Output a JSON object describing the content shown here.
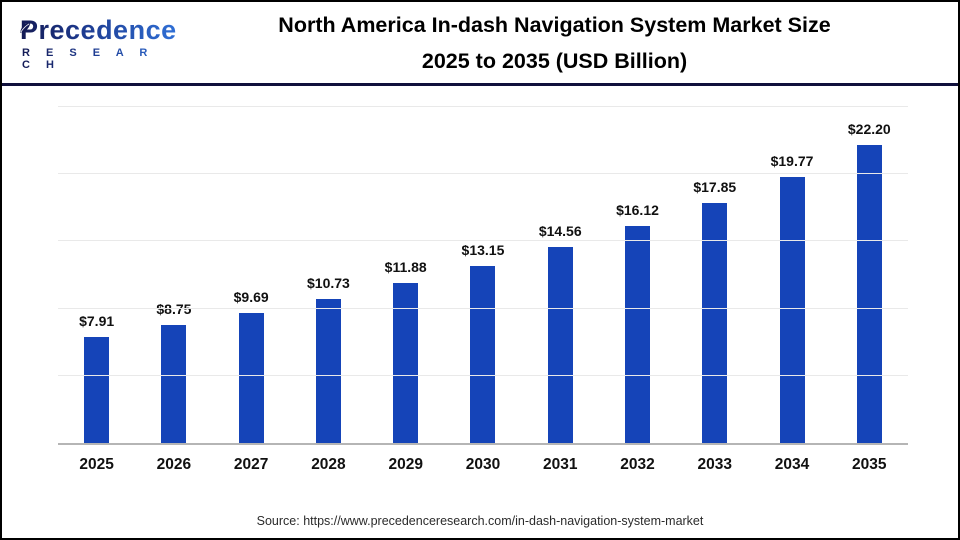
{
  "logo": {
    "name": "Precedence",
    "subname": "R E S E A R C H"
  },
  "title": {
    "line1": "North America In-dash Navigation System Market Size",
    "line2": "2025 to 2035 (USD Billion)"
  },
  "footer": {
    "source": "Source: https://www.precedenceresearch.com/in-dash-navigation-system-market"
  },
  "colors": {
    "bar": "#1544b8",
    "header_divider": "#10103c",
    "gridline": "#e9e9e9",
    "axis": "#b5b5b5"
  },
  "chart_data": {
    "type": "bar",
    "title": "North America In-dash Navigation System Market Size 2025 to 2035 (USD Billion)",
    "categories": [
      "2025",
      "2026",
      "2027",
      "2028",
      "2029",
      "2030",
      "2031",
      "2032",
      "2033",
      "2034",
      "2035"
    ],
    "values": [
      7.91,
      8.75,
      9.69,
      10.73,
      11.88,
      13.15,
      14.56,
      16.12,
      17.85,
      19.77,
      22.2
    ],
    "value_labels": [
      "$7.91",
      "$8.75",
      "$9.69",
      "$10.73",
      "$11.88",
      "$13.15",
      "$14.56",
      "$16.12",
      "$17.85",
      "$19.77",
      "$22.20"
    ],
    "xlabel": "",
    "ylabel": "",
    "ylim": [
      0,
      25
    ],
    "gridline_step": 5,
    "grid": true,
    "legend": false,
    "bar_color": "#1544b8"
  }
}
